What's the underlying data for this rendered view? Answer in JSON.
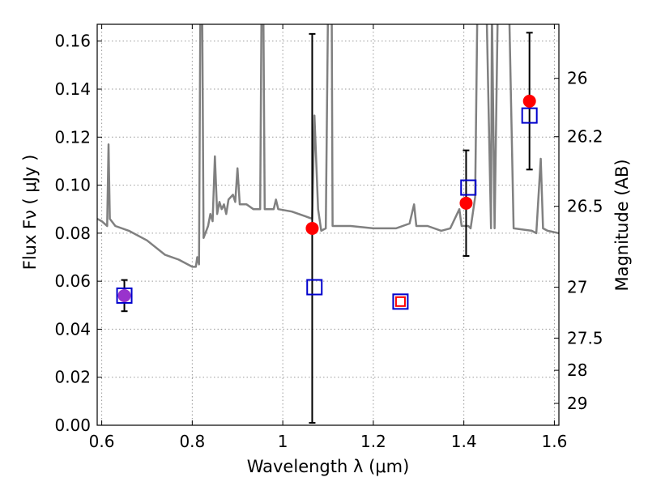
{
  "chart_data": {
    "type": "scatter",
    "xlabel": "Wavelength  λ (μm)",
    "ylabel": "Flux  Fν  ( μJy )",
    "y2label": "Magnitude (AB)",
    "xlim": [
      0.59,
      1.61
    ],
    "ylim": [
      0.0,
      0.167
    ],
    "grid": true,
    "x_ticks": [
      {
        "value": 0.6,
        "label": "0.6"
      },
      {
        "value": 0.8,
        "label": "0.8"
      },
      {
        "value": 1.0,
        "label": "1"
      },
      {
        "value": 1.2,
        "label": "1.2"
      },
      {
        "value": 1.4,
        "label": "1.4"
      },
      {
        "value": 1.6,
        "label": "1.6"
      }
    ],
    "y_ticks": [
      {
        "value": 0.0,
        "label": "0.00"
      },
      {
        "value": 0.02,
        "label": "0.02"
      },
      {
        "value": 0.04,
        "label": "0.04"
      },
      {
        "value": 0.06,
        "label": "0.06"
      },
      {
        "value": 0.08,
        "label": "0.08"
      },
      {
        "value": 0.1,
        "label": "0.10"
      },
      {
        "value": 0.12,
        "label": "0.12"
      },
      {
        "value": 0.14,
        "label": "0.14"
      },
      {
        "value": 0.16,
        "label": "0.16"
      }
    ],
    "y2_ticks": [
      {
        "flux": 0.1445,
        "label": "26"
      },
      {
        "flux": 0.1202,
        "label": "26.2"
      },
      {
        "flux": 0.0912,
        "label": "26.5"
      },
      {
        "flux": 0.0575,
        "label": "27"
      },
      {
        "flux": 0.0363,
        "label": "27.5"
      },
      {
        "flux": 0.0229,
        "label": "28"
      },
      {
        "flux": 0.0091,
        "label": "29"
      }
    ],
    "colors": {
      "spectrum": "#808080",
      "observed": "#ff0000",
      "model": "#0000cc",
      "model_small": "#ff0000",
      "highlight": "#9933cc",
      "errorbar": "#000000",
      "grid": "#9a9a9a"
    },
    "observed_points": [
      {
        "x": 0.65,
        "y": 0.054,
        "yerr_low": 0.0475,
        "yerr_high": 0.0605,
        "color": "#9933cc"
      },
      {
        "x": 1.065,
        "y": 0.082,
        "yerr_low": 0.001,
        "yerr_high": 0.163,
        "color": "#ff0000"
      },
      {
        "x": 1.405,
        "y": 0.0925,
        "yerr_low": 0.0705,
        "yerr_high": 0.1145,
        "color": "#ff0000"
      },
      {
        "x": 1.545,
        "y": 0.135,
        "yerr_low": 0.1065,
        "yerr_high": 0.1635,
        "color": "#ff0000"
      }
    ],
    "model_points": [
      {
        "x": 0.65,
        "y": 0.054,
        "size": "large",
        "color": "#0000cc"
      },
      {
        "x": 1.07,
        "y": 0.0575,
        "size": "large",
        "color": "#0000cc"
      },
      {
        "x": 1.26,
        "y": 0.0515,
        "size": "large",
        "color": "#0000cc"
      },
      {
        "x": 1.26,
        "y": 0.0515,
        "size": "small",
        "color": "#ff0000"
      },
      {
        "x": 1.41,
        "y": 0.099,
        "size": "large",
        "color": "#0000cc"
      },
      {
        "x": 1.545,
        "y": 0.129,
        "size": "large",
        "color": "#0000cc"
      }
    ],
    "spectrum": [
      [
        0.59,
        0.086
      ],
      [
        0.6,
        0.085
      ],
      [
        0.612,
        0.083
      ],
      [
        0.615,
        0.117
      ],
      [
        0.618,
        0.086
      ],
      [
        0.63,
        0.083
      ],
      [
        0.66,
        0.081
      ],
      [
        0.7,
        0.077
      ],
      [
        0.74,
        0.071
      ],
      [
        0.77,
        0.069
      ],
      [
        0.8,
        0.066
      ],
      [
        0.808,
        0.066
      ],
      [
        0.811,
        0.07
      ],
      [
        0.815,
        0.067
      ],
      [
        0.818,
        0.175
      ],
      [
        0.822,
        0.175
      ],
      [
        0.825,
        0.078
      ],
      [
        0.835,
        0.083
      ],
      [
        0.84,
        0.088
      ],
      [
        0.845,
        0.085
      ],
      [
        0.85,
        0.112
      ],
      [
        0.855,
        0.088
      ],
      [
        0.86,
        0.093
      ],
      [
        0.865,
        0.09
      ],
      [
        0.87,
        0.092
      ],
      [
        0.875,
        0.088
      ],
      [
        0.88,
        0.094
      ],
      [
        0.89,
        0.096
      ],
      [
        0.895,
        0.093
      ],
      [
        0.9,
        0.107
      ],
      [
        0.905,
        0.092
      ],
      [
        0.92,
        0.092
      ],
      [
        0.935,
        0.09
      ],
      [
        0.95,
        0.09
      ],
      [
        0.953,
        0.175
      ],
      [
        0.957,
        0.175
      ],
      [
        0.96,
        0.09
      ],
      [
        0.98,
        0.09
      ],
      [
        0.985,
        0.094
      ],
      [
        0.99,
        0.09
      ],
      [
        1.02,
        0.089
      ],
      [
        1.05,
        0.087
      ],
      [
        1.065,
        0.086
      ],
      [
        1.07,
        0.129
      ],
      [
        1.078,
        0.09
      ],
      [
        1.085,
        0.081
      ],
      [
        1.095,
        0.082
      ],
      [
        1.1,
        0.175
      ],
      [
        1.108,
        0.175
      ],
      [
        1.11,
        0.083
      ],
      [
        1.15,
        0.083
      ],
      [
        1.2,
        0.082
      ],
      [
        1.25,
        0.082
      ],
      [
        1.28,
        0.084
      ],
      [
        1.29,
        0.092
      ],
      [
        1.295,
        0.083
      ],
      [
        1.32,
        0.083
      ],
      [
        1.35,
        0.081
      ],
      [
        1.37,
        0.082
      ],
      [
        1.39,
        0.09
      ],
      [
        1.395,
        0.083
      ],
      [
        1.41,
        0.083
      ],
      [
        1.415,
        0.082
      ],
      [
        1.425,
        0.095
      ],
      [
        1.43,
        0.175
      ],
      [
        1.45,
        0.175
      ],
      [
        1.46,
        0.082
      ],
      [
        1.462,
        0.175
      ],
      [
        1.468,
        0.082
      ],
      [
        1.475,
        0.175
      ],
      [
        1.5,
        0.175
      ],
      [
        1.51,
        0.082
      ],
      [
        1.55,
        0.081
      ],
      [
        1.56,
        0.08
      ],
      [
        1.57,
        0.111
      ],
      [
        1.575,
        0.082
      ],
      [
        1.585,
        0.081
      ],
      [
        1.61,
        0.08
      ]
    ]
  }
}
